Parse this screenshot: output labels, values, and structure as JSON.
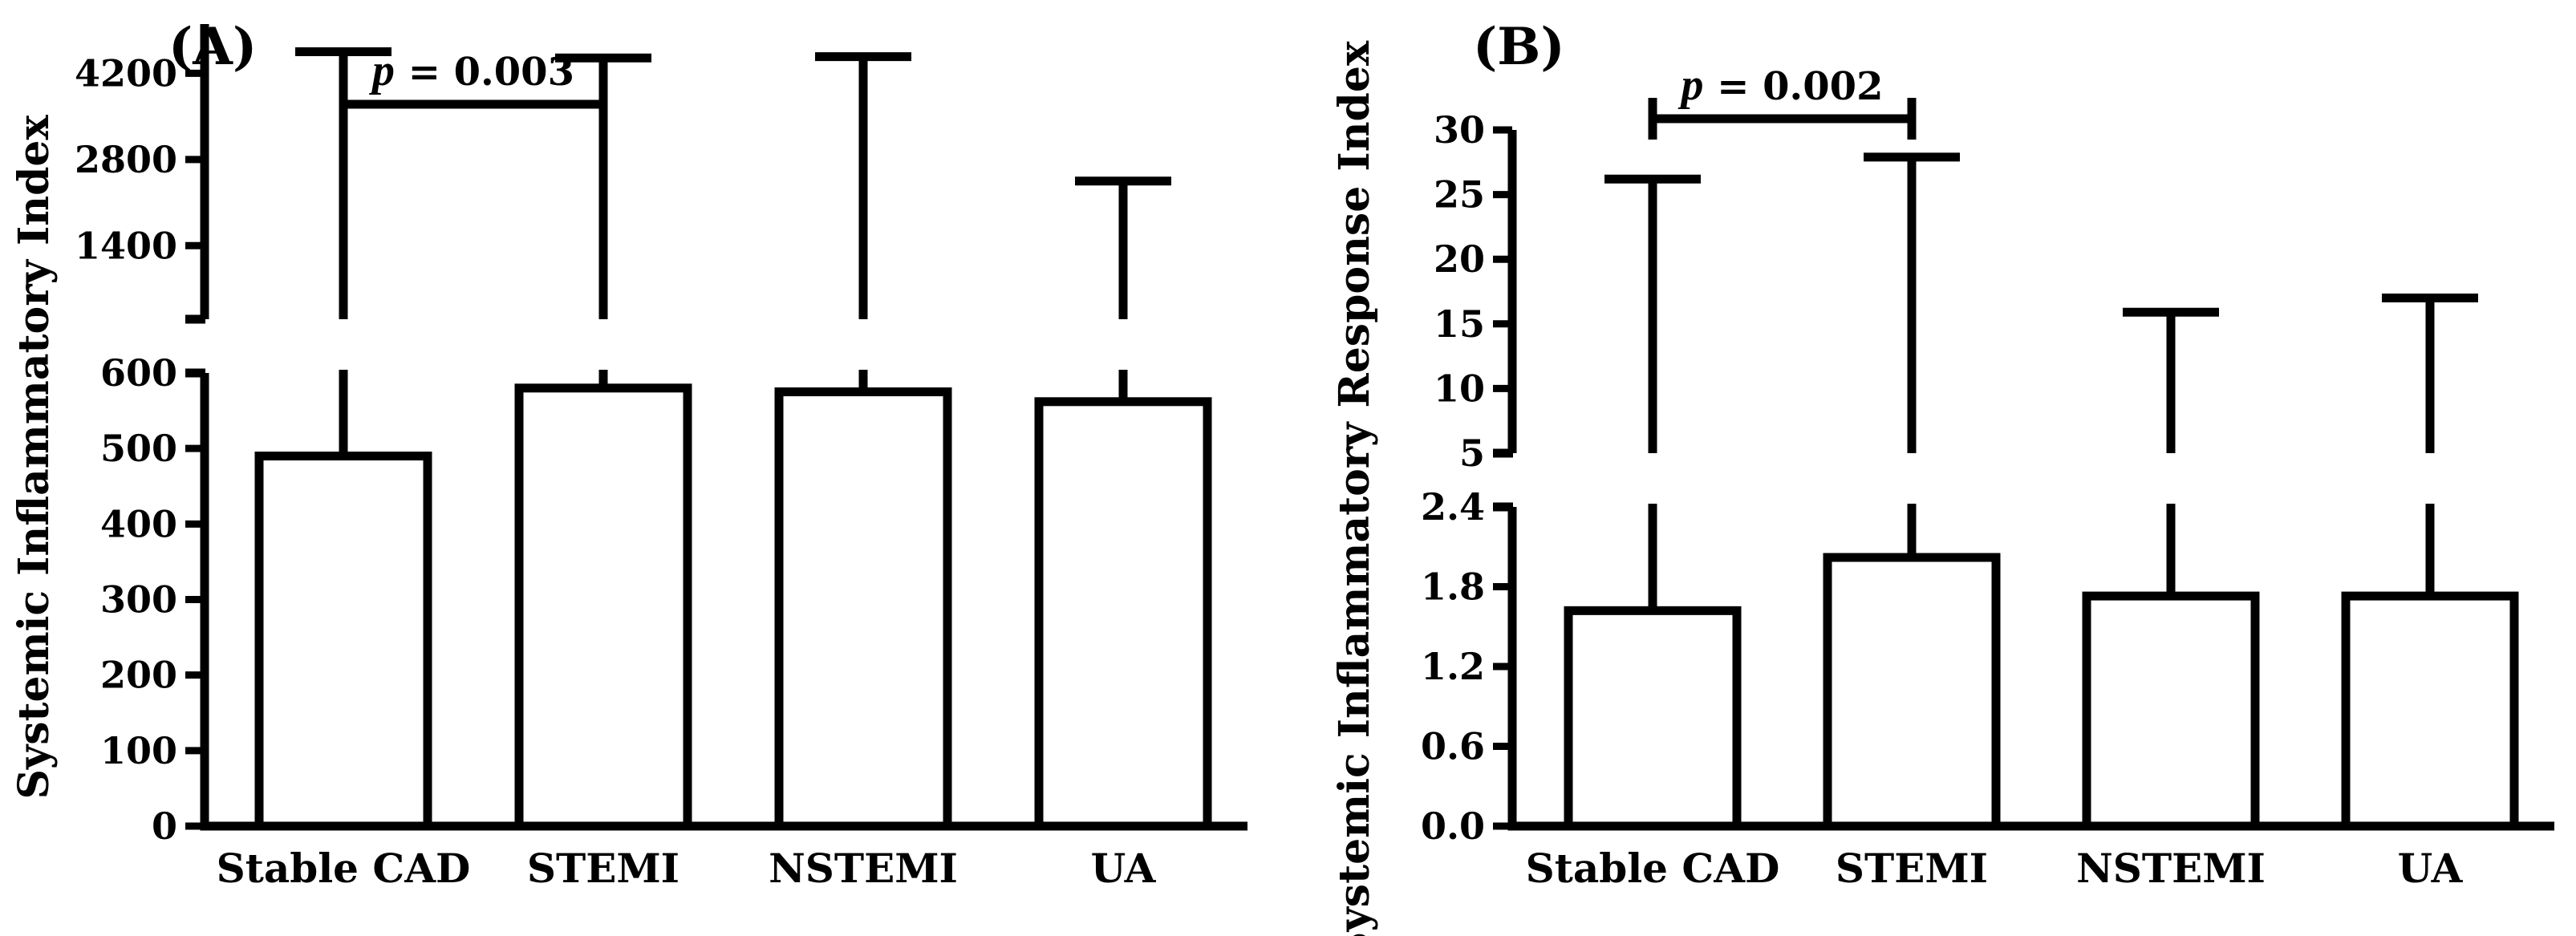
{
  "chart_data": [
    {
      "type": "bar",
      "panel_label": "(A)",
      "ylabel": "Systemic Inflammatory  Index",
      "categories": [
        "Stable CAD",
        "STEMI",
        "NSTEMI",
        "UA"
      ],
      "values": [
        490,
        580,
        575,
        562
      ],
      "error_upper": [
        4550,
        4450,
        4470,
        2450
      ],
      "y_axis_segments": [
        {
          "range": [
            0,
            600
          ],
          "ticks": [
            "0",
            "100",
            "200",
            "300",
            "400",
            "500",
            "600"
          ]
        },
        {
          "range": [
            700,
            5000
          ],
          "ticks": [
            "1400",
            "2800",
            "4200"
          ]
        }
      ],
      "annotation": {
        "prefix": "p",
        "text": " = 0.003",
        "between": [
          "Stable CAD",
          "STEMI"
        ]
      }
    },
    {
      "type": "bar",
      "panel_label": "(B)",
      "ylabel": "Systemic Inflammatory  Response Index",
      "categories": [
        "Stable CAD",
        "STEMI",
        "NSTEMI",
        "UA"
      ],
      "values": [
        1.62,
        2.02,
        1.73,
        1.73
      ],
      "error_upper": [
        26.2,
        27.9,
        15.9,
        17.0
      ],
      "y_axis_segments": [
        {
          "range": [
            0,
            2.4
          ],
          "ticks": [
            "0.0",
            "0.6",
            "1.2",
            "1.8",
            "2.4"
          ]
        },
        {
          "range": [
            5,
            30
          ],
          "ticks": [
            "5",
            "10",
            "15",
            "20",
            "25",
            "30"
          ]
        }
      ],
      "annotation": {
        "prefix": "p",
        "text": " = 0.002",
        "between": [
          "Stable CAD",
          "STEMI"
        ]
      }
    }
  ]
}
